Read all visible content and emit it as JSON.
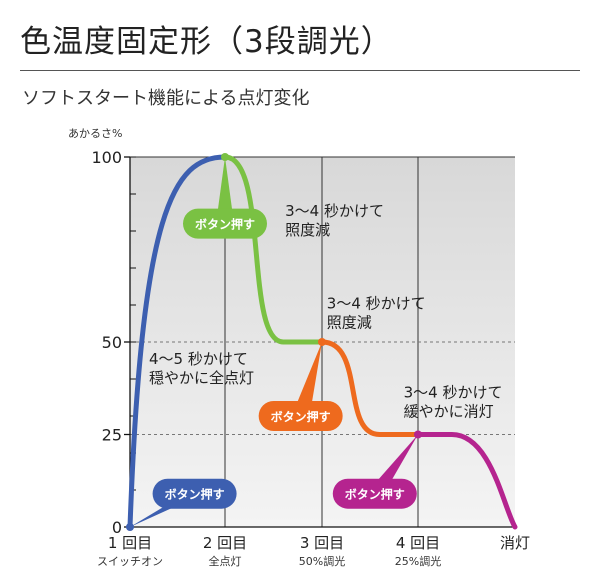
{
  "title": "色温度固定形（3段調光）",
  "subtitle": "ソフトスタート機能による点灯変化",
  "chart_data": {
    "type": "line",
    "ylabel": "あかるさ%",
    "ylim": [
      0,
      100
    ],
    "yticks": [
      {
        "value": 0,
        "label": "0"
      },
      {
        "value": 25,
        "label": "25"
      },
      {
        "value": 50,
        "label": "50"
      },
      {
        "value": 100,
        "label": "100"
      }
    ],
    "x_categories": [
      {
        "label": "1 回目",
        "sub": "スイッチオン"
      },
      {
        "label": "2 回目",
        "sub": "全点灯"
      },
      {
        "label": "3 回目",
        "sub": "50%調光"
      },
      {
        "label": "4 回目",
        "sub": "25%調光"
      },
      {
        "label": "消灯",
        "sub": ""
      }
    ],
    "segments": [
      {
        "color": "#3d5fb0",
        "from": [
          0,
          0
        ],
        "to": [
          1,
          100
        ]
      },
      {
        "color": "#7ac143",
        "from": [
          1,
          100
        ],
        "to": [
          2,
          50
        ]
      },
      {
        "color": "#ee6a1e",
        "from": [
          2,
          50
        ],
        "to": [
          3,
          25
        ]
      },
      {
        "color": "#b5248f",
        "from": [
          3,
          25
        ],
        "to": [
          4,
          0
        ]
      }
    ],
    "annotations": [
      {
        "lines": [
          "4〜5 秒かけて",
          "穏やかに全点灯"
        ],
        "x": 0.2,
        "y": 44
      },
      {
        "lines": [
          "3〜4 秒かけて",
          "照度減"
        ],
        "x": 1.62,
        "y": 84
      },
      {
        "lines": [
          "3〜4 秒かけて",
          "照度減"
        ],
        "x": 2.05,
        "y": 59
      },
      {
        "lines": [
          "3〜4 秒かけて",
          "緩やかに消灯"
        ],
        "x": 2.85,
        "y": 35
      }
    ],
    "buttons": [
      {
        "text": "ボタン押す",
        "color": "#3d5fb0",
        "at": [
          0,
          0
        ],
        "box": [
          0.68,
          9
        ]
      },
      {
        "text": "ボタン押す",
        "color": "#7ac143",
        "at": [
          1,
          100
        ],
        "box": [
          1.0,
          82
        ]
      },
      {
        "text": "ボタン押す",
        "color": "#ee6a1e",
        "at": [
          2,
          50
        ],
        "box": [
          1.78,
          30
        ]
      },
      {
        "text": "ボタン押す",
        "color": "#b5248f",
        "at": [
          3,
          25
        ],
        "box": [
          2.55,
          9
        ]
      }
    ]
  }
}
